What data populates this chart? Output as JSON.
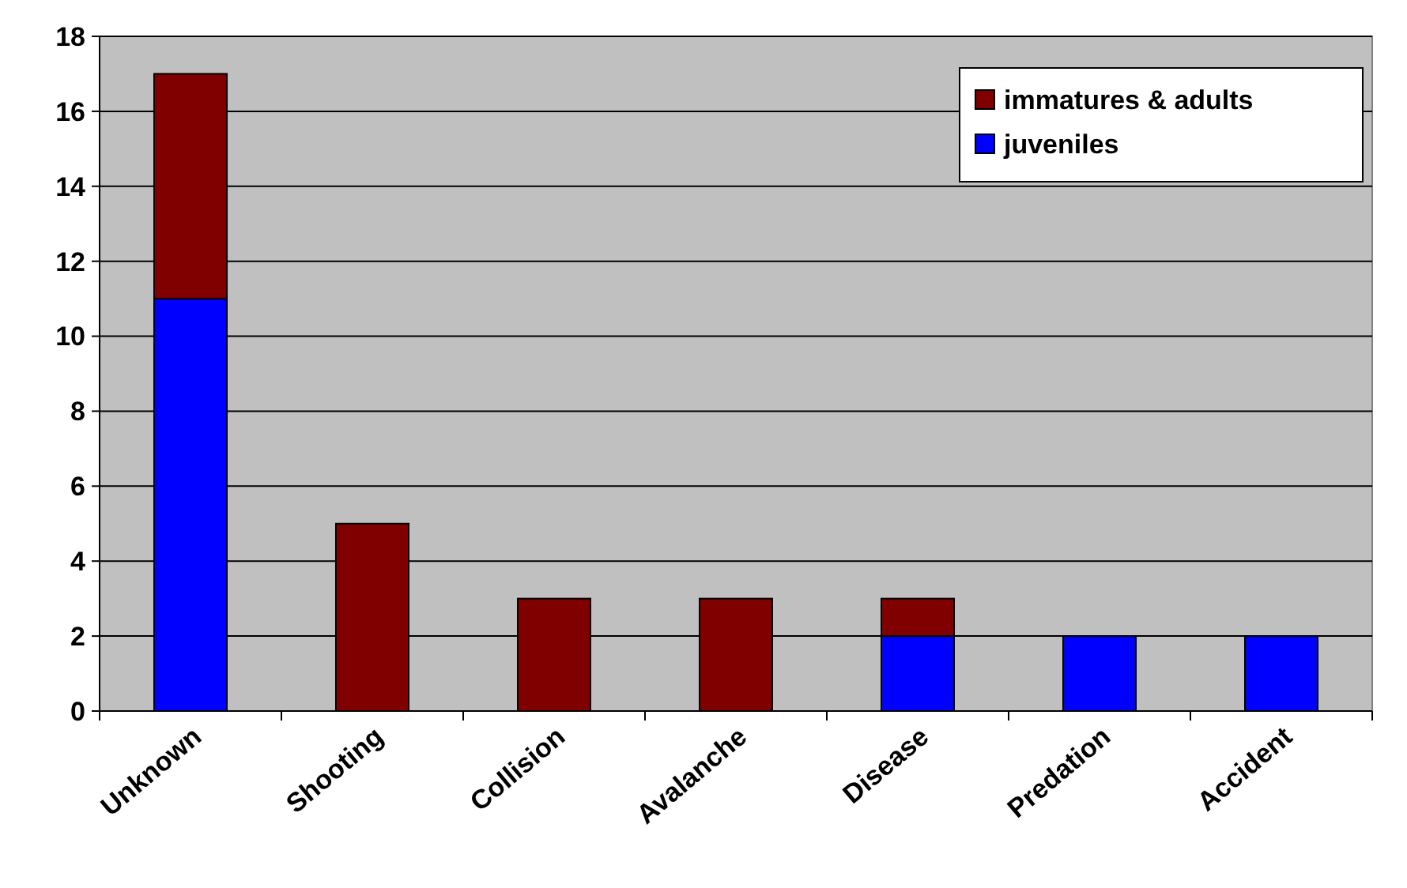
{
  "chart_data": {
    "type": "bar",
    "stacked": true,
    "categories": [
      "Unknown",
      "Shooting",
      "Collision",
      "Avalanche",
      "Disease",
      "Predation",
      "Accident"
    ],
    "series": [
      {
        "name": "juveniles",
        "color": "#0000ff",
        "values": [
          11,
          0,
          0,
          0,
          2,
          2,
          2
        ]
      },
      {
        "name": "immatures & adults",
        "color": "#800000",
        "values": [
          6,
          5,
          3,
          3,
          1,
          0,
          0
        ]
      }
    ],
    "ylim": [
      0,
      18
    ],
    "yticks": [
      0,
      2,
      4,
      6,
      8,
      10,
      12,
      14,
      16,
      18
    ],
    "grid": "y",
    "legend": "top right"
  }
}
